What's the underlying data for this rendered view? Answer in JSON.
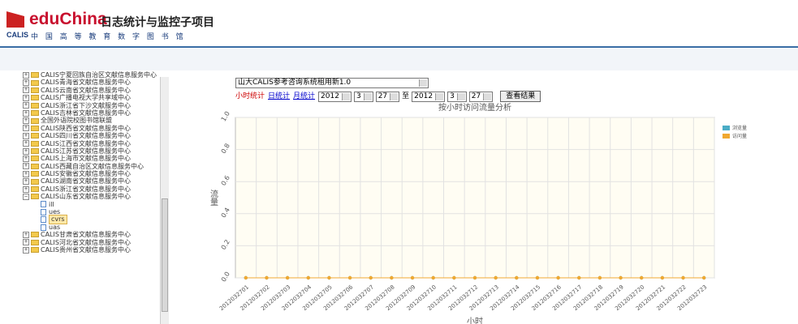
{
  "header": {
    "brand": "eduChina",
    "title": "日志统计与监控子项目",
    "calis": "CALIS",
    "subtitle": "中 国 高 等 教 育 数 字 图 书 馆"
  },
  "tree": {
    "items": [
      {
        "label": "CALIS宁夏回族自治区文献信息服务中心"
      },
      {
        "label": "CALIS青海省文献信息服务中心"
      },
      {
        "label": "CALIS云南省文献信息服务中心"
      },
      {
        "label": "CALIS广播电视大学共享域中心"
      },
      {
        "label": "CALIS浙江省下沙文献服务中心"
      },
      {
        "label": "CALIS吉林省文献信息服务中心"
      },
      {
        "label": "全国外语院校图书馆联盟"
      },
      {
        "label": "CALIS陕西省文献信息服务中心"
      },
      {
        "label": "CALIS四川省文献信息服务中心"
      },
      {
        "label": "CALIS江西省文献信息服务中心"
      },
      {
        "label": "CALIS江苏省文献信息服务中心"
      },
      {
        "label": "CALIS上海市文献信息服务中心"
      },
      {
        "label": "CALIS西藏自治区文献信息服务中心"
      },
      {
        "label": "CALIS安徽省文献信息服务中心"
      },
      {
        "label": "CALIS湖南省文献信息服务中心"
      },
      {
        "label": "CALIS浙江省文献信息服务中心"
      },
      {
        "label": "CALIS山东省文献信息服务中心",
        "children": [
          "ill",
          "ues",
          "cvrs",
          "uas"
        ]
      },
      {
        "label": "CALIS甘肃省文献信息服务中心"
      },
      {
        "label": "CALIS河北省文献信息服务中心"
      },
      {
        "label": "CALIS贵州省文献信息服务中心"
      }
    ]
  },
  "controls": {
    "system": "山大CALIS参考咨询系统租用新1.0",
    "links": [
      "小时统计",
      "日统计",
      "月统计"
    ],
    "from": [
      "2012",
      "3",
      "27"
    ],
    "to_label": "至",
    "to": [
      "2012",
      "3",
      "27"
    ],
    "button": "查看结果"
  },
  "chart_data": {
    "type": "line",
    "title": "按小时访问流量分析",
    "y_label": "流量",
    "x_label": "小时",
    "categories": [
      "2012032701",
      "2012032702",
      "2012032703",
      "2012032704",
      "2012032705",
      "2012032706",
      "2012032707",
      "2012032708",
      "2012032709",
      "2012032710",
      "2012032711",
      "2012032712",
      "2012032713",
      "2012032714",
      "2012032715",
      "2012032716",
      "2012032717",
      "2012032718",
      "2012032719",
      "2012032720",
      "2012032721",
      "2012032722",
      "2012032723"
    ],
    "series": [
      {
        "name": "浏览量",
        "color": "#4bacc6",
        "values": [
          0,
          0,
          0,
          0,
          0,
          0,
          0,
          0,
          0,
          0,
          0,
          0,
          0,
          0,
          0,
          0,
          0,
          0,
          0,
          0,
          0,
          0,
          0
        ]
      },
      {
        "name": "访问量",
        "color": "#f0a830",
        "values": [
          0,
          0,
          0,
          0,
          0,
          0,
          0,
          0,
          0,
          0,
          0,
          0,
          0,
          0,
          0,
          0,
          0,
          0,
          0,
          0,
          0,
          0,
          0
        ]
      }
    ],
    "ylim": [
      0,
      1
    ],
    "yticks": [
      {
        "value": 0,
        "label": "0.0"
      },
      {
        "value": 0.2,
        "label": "0.2"
      },
      {
        "value": 0.4,
        "label": "0.4"
      },
      {
        "value": 0.6,
        "label": "0.6"
      },
      {
        "value": 0.8,
        "label": "0.8"
      },
      {
        "value": 1,
        "label": "1.0"
      }
    ],
    "grid": true,
    "legend": "right"
  }
}
